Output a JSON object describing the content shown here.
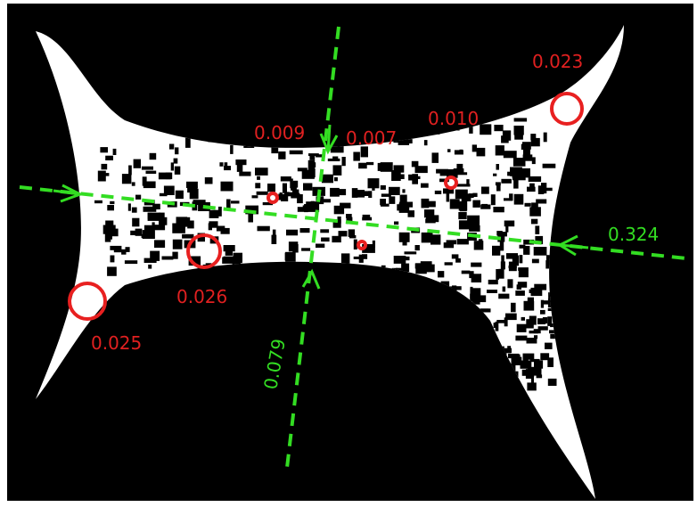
{
  "circle_labels": [
    "0.023",
    "0.010",
    "0.009",
    "0.007",
    "0.026",
    "0.025"
  ],
  "line_labels": [
    "0.324",
    "0.079"
  ]
}
